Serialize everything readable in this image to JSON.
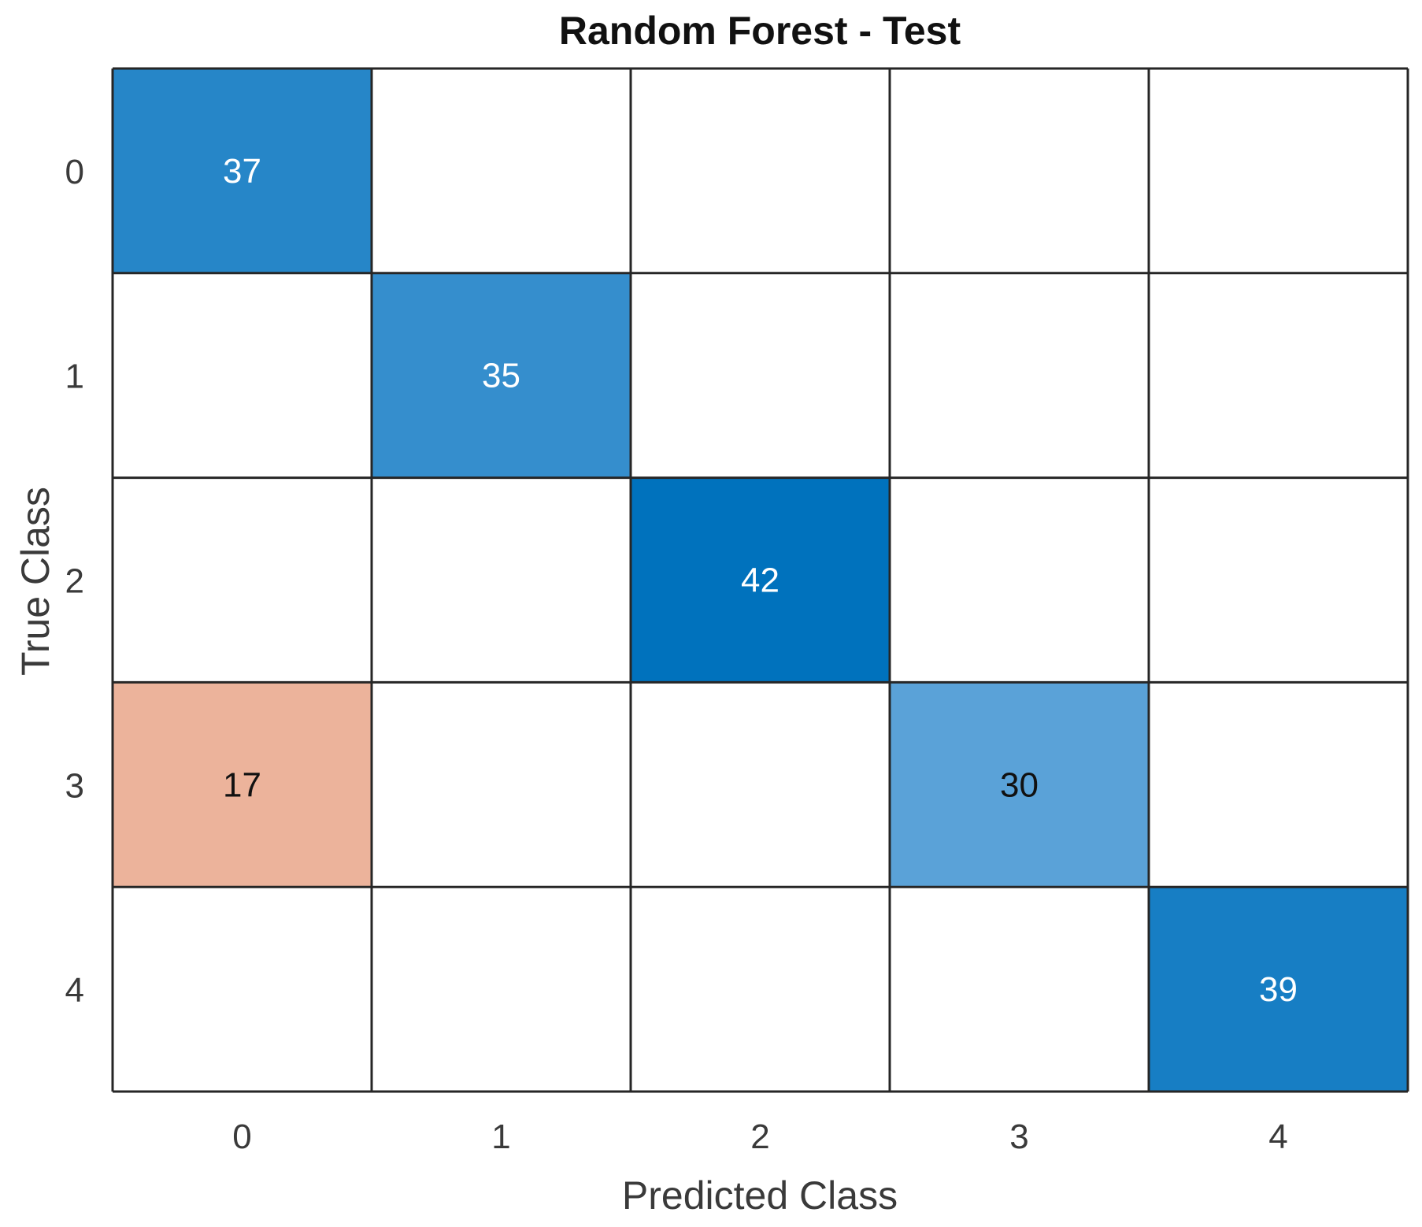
{
  "chart_data": {
    "type": "heatmap",
    "title": "Random Forest - Test",
    "xlabel": "Predicted Class",
    "ylabel": "True Class",
    "x_categories": [
      "0",
      "1",
      "2",
      "3",
      "4"
    ],
    "y_categories": [
      "0",
      "1",
      "2",
      "3",
      "4"
    ],
    "matrix": [
      [
        37,
        null,
        null,
        null,
        null
      ],
      [
        null,
        35,
        null,
        null,
        null
      ],
      [
        null,
        null,
        42,
        null,
        null
      ],
      [
        17,
        null,
        null,
        30,
        null
      ],
      [
        null,
        null,
        null,
        null,
        39
      ]
    ],
    "colors": {
      "diagonal_max": "#0072BD",
      "diagonal_min": "#5AA2D8",
      "off_diagonal": "#ECB39B",
      "empty": "#FFFFFF",
      "grid_line": "#262626",
      "text_light": "#FFFFFF",
      "text_dark": "#111111"
    }
  }
}
